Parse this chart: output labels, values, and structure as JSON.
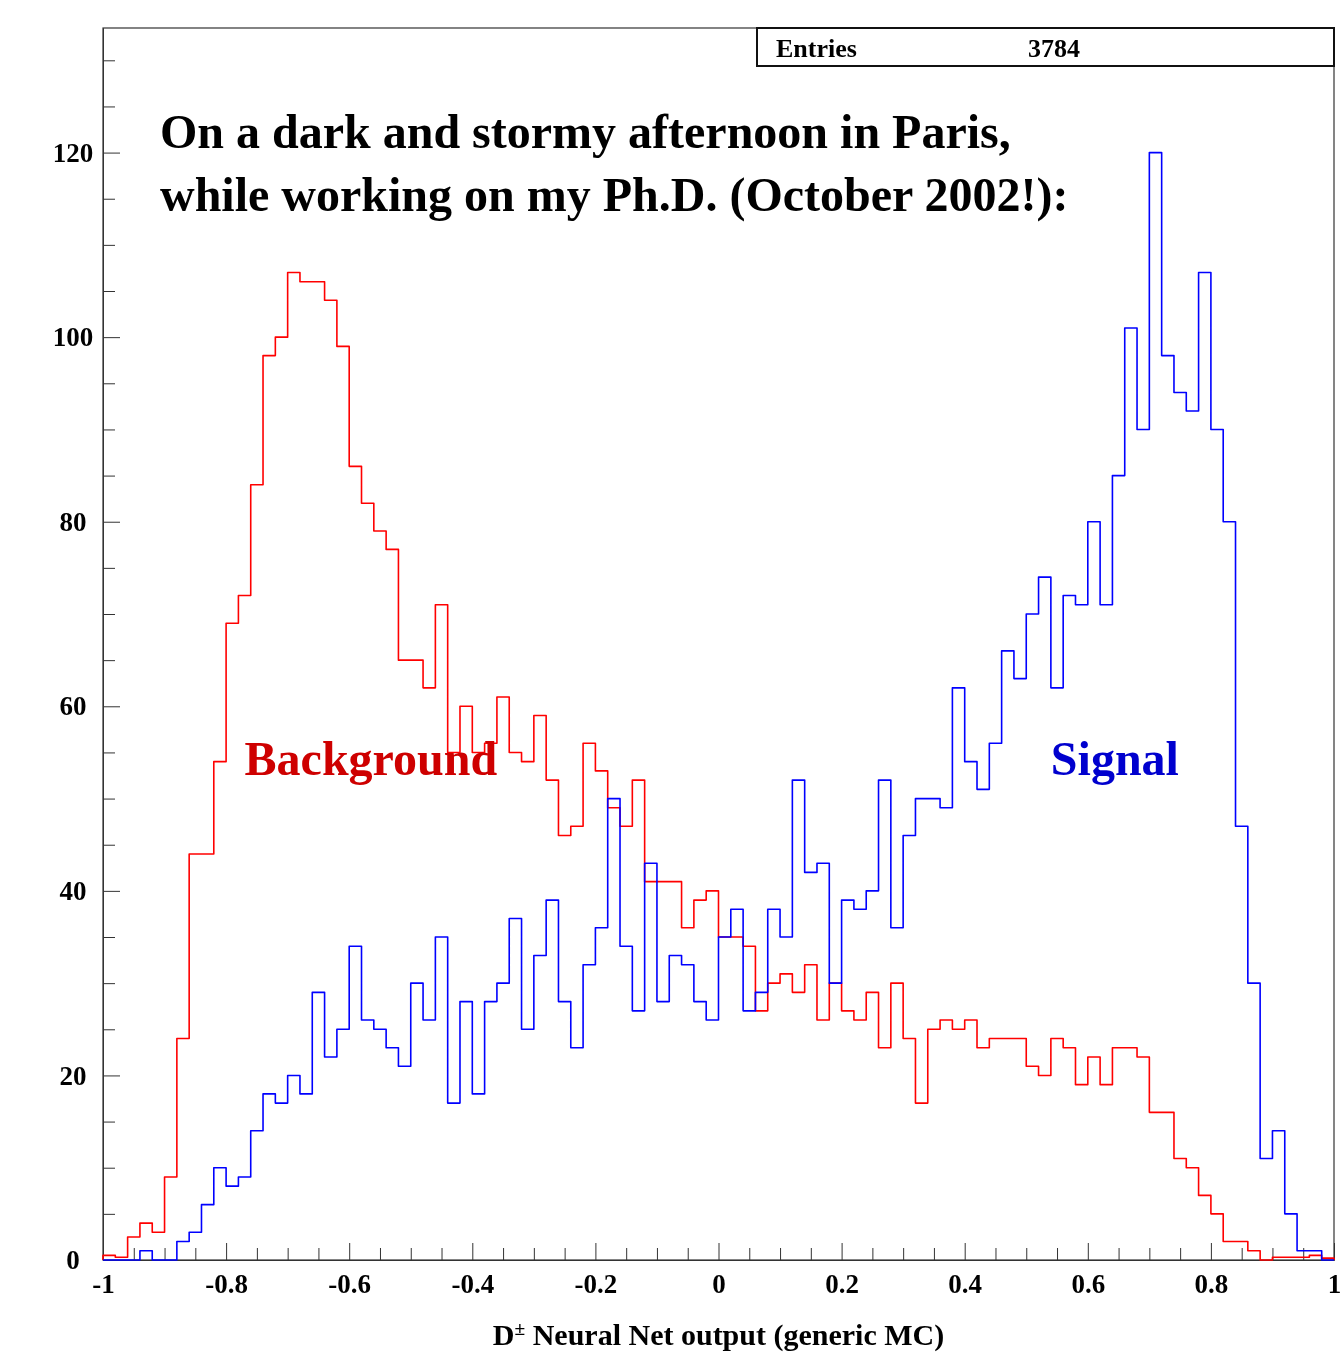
{
  "chart_data": {
    "type": "histogram",
    "title": "On a dark and stormy afternoon in Paris,\nwhile working on my Ph.D. (October 2002!):",
    "xlabel": "D$^{±}$ Neural Net output (generic MC)",
    "annotations": [
      "Entries",
      "3784"
    ],
    "bins": [
      -1,
      -0.98,
      -0.96,
      -0.94,
      -0.92,
      -0.9,
      -0.88,
      -0.86,
      -0.84,
      -0.82,
      -0.8,
      -0.78,
      -0.76,
      -0.74,
      -0.72,
      -0.7,
      -0.68,
      -0.66,
      -0.64,
      -0.62,
      -0.6,
      -0.58,
      -0.56,
      -0.54,
      -0.52,
      -0.5,
      -0.48,
      -0.46,
      -0.44,
      -0.42,
      -0.4,
      -0.38,
      -0.36,
      -0.34,
      -0.32,
      -0.3,
      -0.28,
      -0.26,
      -0.24,
      -0.22,
      -0.2,
      -0.18,
      -0.16,
      -0.14,
      -0.12,
      -0.1,
      -0.08,
      -0.06,
      -0.04,
      -0.02,
      0,
      0.02,
      0.04,
      0.06,
      0.08,
      0.1,
      0.12,
      0.14,
      0.16,
      0.18,
      0.2,
      0.22,
      0.24,
      0.26,
      0.28,
      0.3,
      0.32,
      0.34,
      0.36,
      0.38,
      0.4,
      0.42,
      0.44,
      0.46,
      0.48,
      0.5,
      0.52,
      0.54,
      0.56,
      0.58,
      0.6,
      0.62,
      0.64,
      0.66,
      0.68,
      0.7,
      0.72,
      0.74,
      0.76,
      0.78,
      0.8,
      0.82,
      0.84,
      0.86,
      0.88,
      0.9,
      0.92,
      0.94,
      0.96,
      0.98,
      1
    ],
    "series": [
      {
        "name": "Background",
        "color": "#ff0000",
        "values": [
          0.5,
          0.3,
          2.5,
          4,
          3,
          9,
          24,
          44,
          44,
          54,
          69,
          72,
          84,
          98,
          100,
          107,
          106,
          106,
          104,
          99,
          86,
          82,
          79,
          77,
          65,
          65,
          62,
          71,
          55,
          60,
          55,
          56,
          61,
          55,
          54,
          59,
          52,
          46,
          47,
          56,
          53,
          49,
          47,
          52,
          41,
          41,
          41,
          36,
          39,
          40,
          35,
          35,
          34,
          27,
          30,
          31,
          29,
          32,
          26,
          30,
          27,
          26,
          29,
          23,
          30,
          24,
          17,
          25,
          26,
          25,
          26,
          23,
          24,
          24,
          24,
          21,
          20,
          24,
          23,
          19,
          22,
          19,
          23,
          23,
          22,
          16,
          16,
          11,
          10,
          7,
          5,
          2,
          2,
          1,
          0,
          0.3,
          0.3,
          0.3,
          0.5,
          0.2
        ]
      },
      {
        "name": "Signal",
        "color": "#0000ff",
        "values": [
          0,
          0,
          0,
          1,
          0,
          0,
          2,
          3,
          6,
          10,
          8,
          9,
          14,
          18,
          17,
          20,
          18,
          29,
          22,
          25,
          34,
          26,
          25,
          23,
          21,
          30,
          26,
          35,
          17,
          28,
          18,
          28,
          30,
          37,
          25,
          33,
          39,
          28,
          23,
          32,
          36,
          50,
          34,
          27,
          43,
          28,
          33,
          32,
          28,
          26,
          35,
          38,
          27,
          29,
          38,
          35,
          52,
          42,
          43,
          30,
          39,
          38,
          40,
          52,
          36,
          46,
          50,
          50,
          49,
          62,
          54,
          51,
          56,
          66,
          63,
          70,
          74,
          62,
          72,
          71,
          80,
          71,
          85,
          101,
          90,
          120,
          98,
          94,
          92,
          107,
          90,
          80,
          47,
          30,
          11,
          14,
          5,
          1,
          1,
          0
        ]
      }
    ],
    "xlim": [
      -1,
      1
    ],
    "xticks": [
      {
        "value": -1,
        "label": "-1"
      },
      {
        "value": -0.95,
        "label": null
      },
      {
        "value": -0.9,
        "label": null
      },
      {
        "value": -0.85,
        "label": null
      },
      {
        "value": -0.8,
        "label": "-0.8"
      },
      {
        "value": -0.75,
        "label": null
      },
      {
        "value": -0.7,
        "label": null
      },
      {
        "value": -0.65,
        "label": null
      },
      {
        "value": -0.6,
        "label": "-0.6"
      },
      {
        "value": -0.55,
        "label": null
      },
      {
        "value": -0.5,
        "label": null
      },
      {
        "value": -0.45,
        "label": null
      },
      {
        "value": -0.4,
        "label": "-0.4"
      },
      {
        "value": -0.35,
        "label": null
      },
      {
        "value": -0.3,
        "label": null
      },
      {
        "value": -0.25,
        "label": null
      },
      {
        "value": -0.2,
        "label": "-0.2"
      },
      {
        "value": -0.15,
        "label": null
      },
      {
        "value": -0.1,
        "label": null
      },
      {
        "value": -0.05,
        "label": null
      },
      {
        "value": 0,
        "label": "0"
      },
      {
        "value": 0.05,
        "label": null
      },
      {
        "value": 0.1,
        "label": null
      },
      {
        "value": 0.15,
        "label": null
      },
      {
        "value": 0.2,
        "label": "0.2"
      },
      {
        "value": 0.25,
        "label": null
      },
      {
        "value": 0.3,
        "label": null
      },
      {
        "value": 0.35,
        "label": null
      },
      {
        "value": 0.4,
        "label": "0.4"
      },
      {
        "value": 0.45,
        "label": null
      },
      {
        "value": 0.5,
        "label": null
      },
      {
        "value": 0.55,
        "label": null
      },
      {
        "value": 0.6,
        "label": "0.6"
      },
      {
        "value": 0.65,
        "label": null
      },
      {
        "value": 0.7,
        "label": null
      },
      {
        "value": 0.75,
        "label": null
      },
      {
        "value": 0.8,
        "label": "0.8"
      },
      {
        "value": 0.85,
        "label": null
      },
      {
        "value": 0.9,
        "label": null
      },
      {
        "value": 0.95,
        "label": null
      },
      {
        "value": 1,
        "label": "1"
      }
    ],
    "ylim": [
      0,
      133.5
    ],
    "yticks": [
      0,
      {
        "value": 5,
        "label": null
      },
      {
        "value": 10,
        "label": null
      },
      {
        "value": 15,
        "label": null
      },
      20,
      {
        "value": 25,
        "label": null
      },
      {
        "value": 30,
        "label": null
      },
      {
        "value": 35,
        "label": null
      },
      40,
      {
        "value": 45,
        "label": null
      },
      {
        "value": 50,
        "label": null
      },
      {
        "value": 55,
        "label": null
      },
      60,
      {
        "value": 65,
        "label": null
      },
      {
        "value": 70,
        "label": null
      },
      {
        "value": 75,
        "label": null
      },
      80,
      {
        "value": 85,
        "label": null
      },
      {
        "value": 90,
        "label": null
      },
      {
        "value": 95,
        "label": null
      },
      100,
      {
        "value": 105,
        "label": null
      },
      {
        "value": 110,
        "label": null
      },
      {
        "value": 115,
        "label": null
      },
      120,
      {
        "value": 125,
        "label": null
      },
      {
        "value": 130,
        "label": null
      }
    ],
    "grid": false,
    "legend": false
  }
}
